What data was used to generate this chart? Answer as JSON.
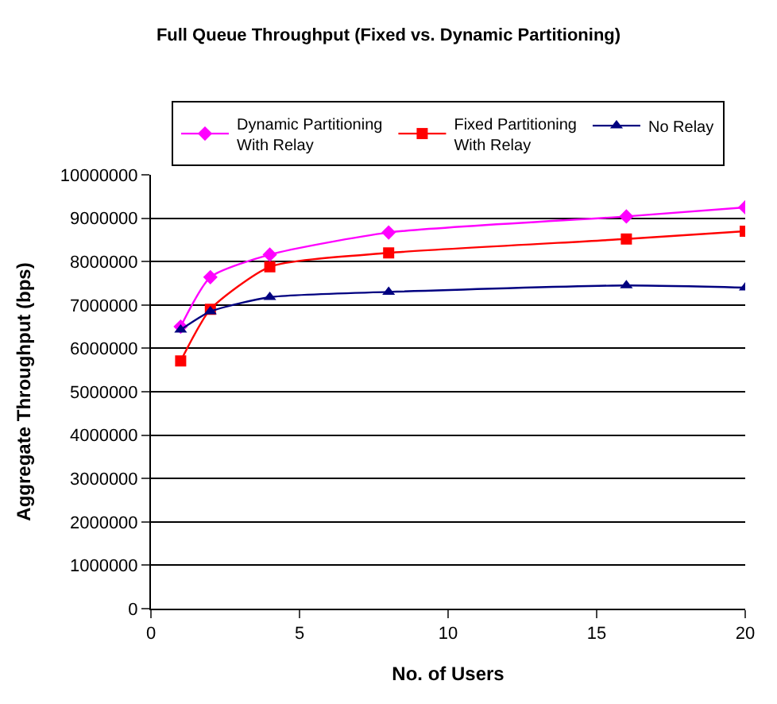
{
  "chart_data": {
    "type": "line",
    "title": "Full Queue Throughput (Fixed vs. Dynamic Partitioning)",
    "xlabel": "No. of Users",
    "ylabel": "Aggregate Throughput (bps)",
    "x": [
      1,
      2,
      4,
      8,
      16,
      20
    ],
    "series": [
      {
        "name": "Dynamic Partitioning\nWith Relay",
        "color": "#ff00ff",
        "marker": "diamond",
        "values": [
          6500000,
          7640000,
          8160000,
          8670000,
          9040000,
          9250000
        ]
      },
      {
        "name": "Fixed Partitioning\nWith Relay",
        "color": "#ff0000",
        "marker": "square",
        "values": [
          5710000,
          6900000,
          7880000,
          8200000,
          8520000,
          8700000
        ]
      },
      {
        "name": "No Relay",
        "color": "#000080",
        "marker": "triangle",
        "values": [
          6430000,
          6850000,
          7180000,
          7300000,
          7450000,
          7400000
        ]
      }
    ],
    "xlim": [
      0,
      20
    ],
    "xticks": [
      0,
      5,
      10,
      15,
      20
    ],
    "ylim": [
      0,
      10000000
    ],
    "yticks": [
      0,
      1000000,
      2000000,
      3000000,
      4000000,
      5000000,
      6000000,
      7000000,
      8000000,
      9000000,
      10000000
    ],
    "grid": "y",
    "legend": "top",
    "line_style": "solid"
  }
}
